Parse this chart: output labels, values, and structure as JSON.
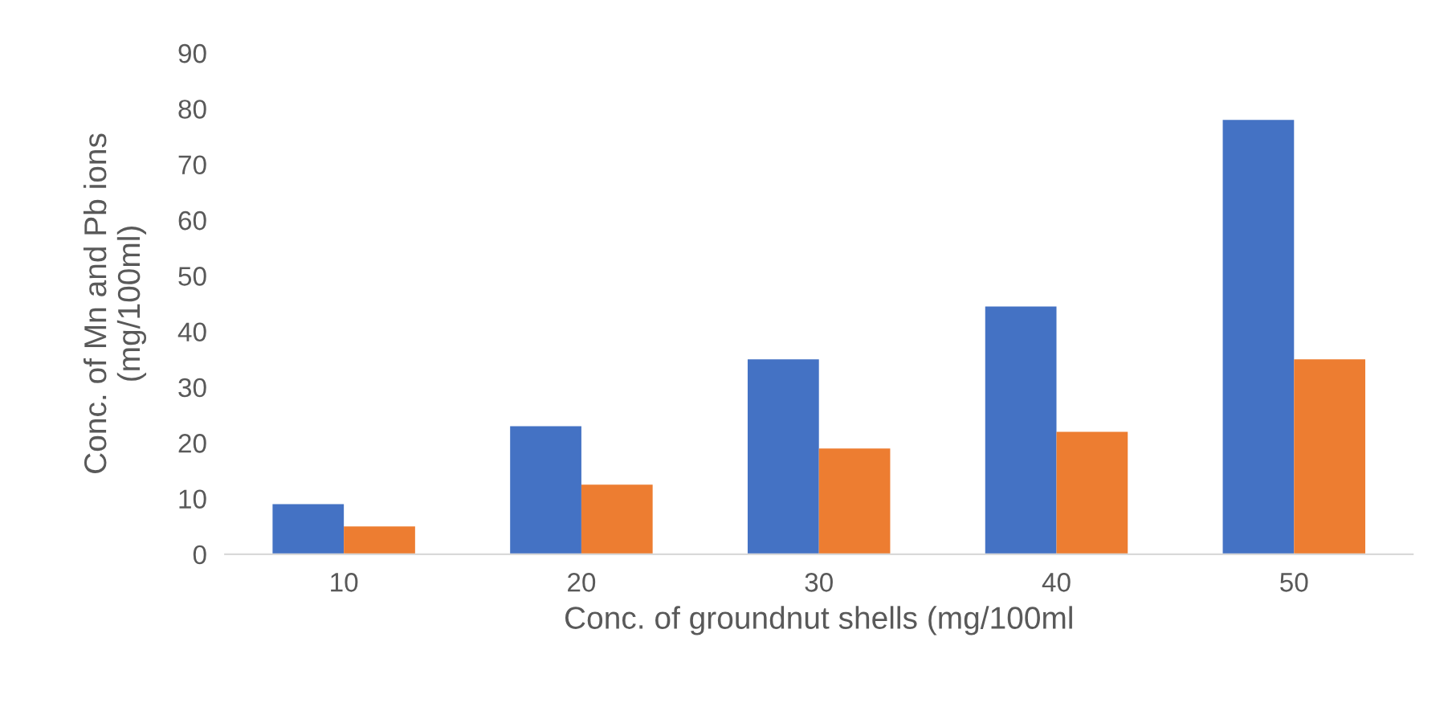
{
  "chart_data": {
    "type": "bar",
    "xlabel": "Conc. of groundnut shells (mg/100ml",
    "ylabel": "Conc. of Mn and Pb ions\n(mg/100ml)",
    "categories": [
      "10",
      "20",
      "30",
      "40",
      "50"
    ],
    "series": [
      {
        "color": "#4472c4",
        "values": [
          9,
          23,
          35,
          44.5,
          78
        ]
      },
      {
        "color": "#ed7d31",
        "values": [
          5,
          12.5,
          19,
          22,
          35
        ]
      }
    ],
    "ylim": [
      0,
      90
    ],
    "yticks": [
      0,
      10,
      20,
      30,
      40,
      50,
      60,
      70,
      80,
      90
    ],
    "grid": false
  }
}
